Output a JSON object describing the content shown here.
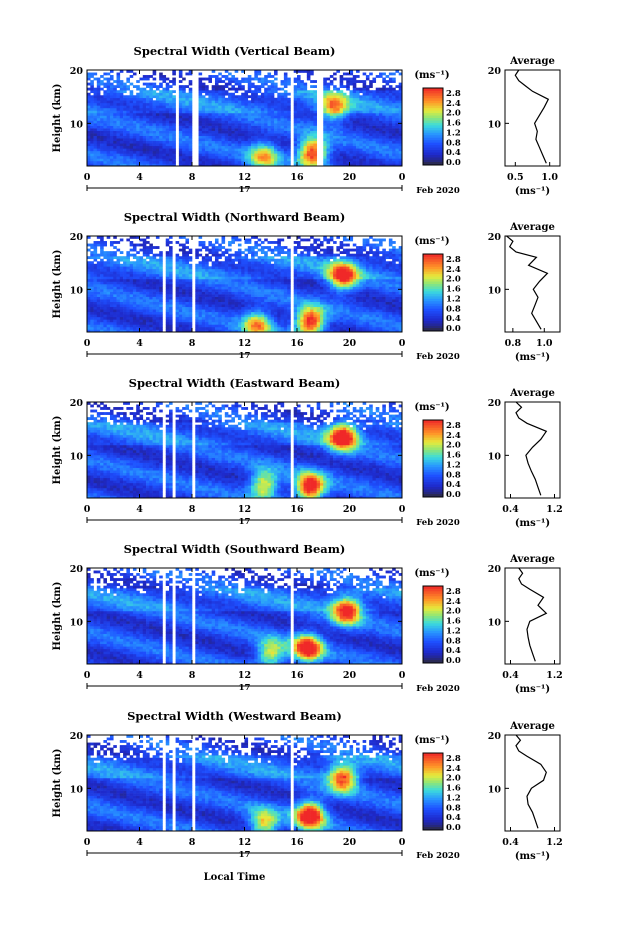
{
  "figure": {
    "x_axis_label": "Local Time",
    "date_day": "17",
    "date_month_year": "Feb 2020",
    "y_axis_label": "Height (km)",
    "colorbar_unit": "(ms⁻¹)",
    "profile_title": "Average",
    "profile_unit": "(ms⁻¹)"
  },
  "chart_data": [
    {
      "type": "heatmap",
      "title": "Spectral Width (Vertical Beam)",
      "xlabel": "Local Time",
      "ylabel": "Height (km)",
      "xlim": [
        0,
        24
      ],
      "ylim": [
        2,
        20
      ],
      "xticks": [
        "0",
        "4",
        "8",
        "12",
        "16",
        "20",
        "0"
      ],
      "yticks": [
        "10",
        "20"
      ],
      "colorbar": {
        "range": [
          0,
          3.0
        ],
        "ticks": [
          "2.8",
          "2.4",
          "2.0",
          "1.6",
          "1.2",
          "0.8",
          "0.4",
          "0.0"
        ]
      },
      "gaps_hours": [
        [
          6.8,
          7.0
        ],
        [
          8.0,
          8.4
        ],
        [
          15.4,
          15.8
        ],
        [
          17.6,
          17.9
        ]
      ],
      "hotspots": [
        {
          "t": 17.2,
          "h": 4.5,
          "v": 2.6
        },
        {
          "t": 18.8,
          "h": 13.0,
          "v": 1.8
        },
        {
          "t": 13.5,
          "h": 4.0,
          "v": 1.6
        }
      ],
      "profile": {
        "title": "Average",
        "xticks": [
          "0.5",
          "1.0"
        ],
        "xlim": [
          0.35,
          1.15
        ],
        "yticks": [
          "10",
          "20"
        ],
        "ylim": [
          2,
          20
        ],
        "heights": [
          2.5,
          4,
          5.5,
          7,
          8.5,
          10,
          11.5,
          13,
          14.5,
          16,
          17,
          18,
          19,
          20
        ],
        "values": [
          0.95,
          0.9,
          0.85,
          0.8,
          0.82,
          0.78,
          0.85,
          0.92,
          0.98,
          0.75,
          0.65,
          0.55,
          0.5,
          0.55
        ]
      }
    },
    {
      "type": "heatmap",
      "title": "Spectral Width (Northward Beam)",
      "xlabel": "Local Time",
      "ylabel": "Height (km)",
      "xlim": [
        0,
        24
      ],
      "ylim": [
        2,
        20
      ],
      "xticks": [
        "0",
        "4",
        "8",
        "12",
        "16",
        "20",
        "0"
      ],
      "yticks": [
        "10",
        "20"
      ],
      "colorbar": {
        "range": [
          0,
          3.0
        ],
        "ticks": [
          "2.8",
          "2.4",
          "2.0",
          "1.6",
          "1.2",
          "0.8",
          "0.4",
          "0.0"
        ]
      },
      "gaps_hours": [
        [
          5.8,
          6.0
        ],
        [
          6.6,
          6.8
        ],
        [
          8.0,
          8.3
        ],
        [
          15.4,
          15.7
        ]
      ],
      "hotspots": [
        {
          "t": 17.0,
          "h": 4.0,
          "v": 2.7
        },
        {
          "t": 19.5,
          "h": 12.5,
          "v": 2.4
        },
        {
          "t": 13.0,
          "h": 3.5,
          "v": 1.8
        }
      ],
      "profile": {
        "title": "Average",
        "xticks": [
          "0.8",
          "1.0"
        ],
        "xlim": [
          0.75,
          1.1
        ],
        "yticks": [
          "10",
          "20"
        ],
        "ylim": [
          2,
          20
        ],
        "heights": [
          2.5,
          4,
          5.5,
          7,
          8.5,
          10,
          11.5,
          13,
          14.5,
          16,
          17,
          18,
          19,
          20
        ],
        "values": [
          0.98,
          0.95,
          0.92,
          0.94,
          0.96,
          0.93,
          0.97,
          1.02,
          0.9,
          0.95,
          0.82,
          0.78,
          0.8,
          0.76
        ]
      }
    },
    {
      "type": "heatmap",
      "title": "Spectral Width (Eastward Beam)",
      "xlabel": "Local Time",
      "ylabel": "Height (km)",
      "xlim": [
        0,
        24
      ],
      "ylim": [
        2,
        20
      ],
      "xticks": [
        "0",
        "4",
        "8",
        "12",
        "16",
        "20",
        "0"
      ],
      "yticks": [
        "10",
        "20"
      ],
      "colorbar": {
        "range": [
          0,
          3.0
        ],
        "ticks": [
          "2.8",
          "2.4",
          "2.0",
          "1.6",
          "1.2",
          "0.8",
          "0.4",
          "0.0"
        ]
      },
      "gaps_hours": [
        [
          5.8,
          6.0
        ],
        [
          6.6,
          6.8
        ],
        [
          8.0,
          8.3
        ],
        [
          15.4,
          15.7
        ]
      ],
      "hotspots": [
        {
          "t": 17.0,
          "h": 4.0,
          "v": 2.8
        },
        {
          "t": 19.5,
          "h": 13.5,
          "v": 2.6
        },
        {
          "t": 13.5,
          "h": 4.5,
          "v": 1.8
        }
      ],
      "profile": {
        "title": "Average",
        "xticks": [
          "0.4",
          "1.2"
        ],
        "xlim": [
          0.3,
          1.3
        ],
        "yticks": [
          "10",
          "20"
        ],
        "ylim": [
          2,
          20
        ],
        "heights": [
          2.5,
          4,
          5.5,
          7,
          8.5,
          10,
          11.5,
          13,
          14.5,
          16,
          17,
          18,
          19,
          20
        ],
        "values": [
          0.95,
          0.9,
          0.85,
          0.78,
          0.72,
          0.68,
          0.8,
          0.95,
          1.05,
          0.7,
          0.55,
          0.5,
          0.6,
          0.5
        ]
      }
    },
    {
      "type": "heatmap",
      "title": "Spectral Width (Southward Beam)",
      "xlabel": "Local Time",
      "ylabel": "Height (km)",
      "xlim": [
        0,
        24
      ],
      "ylim": [
        2,
        20
      ],
      "xticks": [
        "0",
        "4",
        "8",
        "12",
        "16",
        "20",
        "0"
      ],
      "yticks": [
        "10",
        "20"
      ],
      "colorbar": {
        "range": [
          0,
          3.0
        ],
        "ticks": [
          "2.8",
          "2.4",
          "2.0",
          "1.6",
          "1.2",
          "0.8",
          "0.4",
          "0.0"
        ]
      },
      "gaps_hours": [
        [
          5.8,
          6.0
        ],
        [
          6.6,
          6.8
        ],
        [
          8.0,
          8.3
        ],
        [
          15.4,
          15.7
        ]
      ],
      "hotspots": [
        {
          "t": 16.8,
          "h": 5.0,
          "v": 2.7
        },
        {
          "t": 19.8,
          "h": 12.0,
          "v": 2.4
        },
        {
          "t": 14.0,
          "h": 4.0,
          "v": 1.6
        }
      ],
      "profile": {
        "title": "Average",
        "xticks": [
          "0.4",
          "1.2"
        ],
        "xlim": [
          0.3,
          1.3
        ],
        "yticks": [
          "10",
          "20"
        ],
        "ylim": [
          2,
          20
        ],
        "heights": [
          2.5,
          4,
          5.5,
          7,
          8.5,
          10,
          11.5,
          13,
          14.5,
          16,
          17,
          18,
          19,
          20
        ],
        "values": [
          0.85,
          0.8,
          0.75,
          0.72,
          0.7,
          0.75,
          1.05,
          0.9,
          1.0,
          0.75,
          0.6,
          0.55,
          0.62,
          0.55
        ]
      }
    },
    {
      "type": "heatmap",
      "title": "Spectral Width (Westward Beam)",
      "xlabel": "Local Time",
      "ylabel": "Height (km)",
      "xlim": [
        0,
        24
      ],
      "ylim": [
        2,
        20
      ],
      "xticks": [
        "0",
        "4",
        "8",
        "12",
        "16",
        "20",
        "0"
      ],
      "yticks": [
        "10",
        "20"
      ],
      "colorbar": {
        "range": [
          0,
          3.0
        ],
        "ticks": [
          "2.8",
          "2.4",
          "2.0",
          "1.6",
          "1.2",
          "0.8",
          "0.4",
          "0.0"
        ]
      },
      "gaps_hours": [
        [
          5.8,
          6.0
        ],
        [
          6.6,
          6.8
        ],
        [
          8.0,
          8.3
        ],
        [
          15.4,
          15.7
        ]
      ],
      "hotspots": [
        {
          "t": 17.0,
          "h": 5.0,
          "v": 2.9
        },
        {
          "t": 19.5,
          "h": 12.0,
          "v": 2.2
        },
        {
          "t": 13.5,
          "h": 3.5,
          "v": 1.7
        }
      ],
      "profile": {
        "title": "Average",
        "xticks": [
          "0.4",
          "1.2"
        ],
        "xlim": [
          0.3,
          1.3
        ],
        "yticks": [
          "10",
          "20"
        ],
        "ylim": [
          2,
          20
        ],
        "heights": [
          2.5,
          4,
          5.5,
          7,
          8.5,
          10,
          11.5,
          13,
          14.5,
          16,
          17,
          18,
          19,
          20
        ],
        "values": [
          0.9,
          0.85,
          0.8,
          0.72,
          0.7,
          0.78,
          1.0,
          1.05,
          0.95,
          0.7,
          0.55,
          0.5,
          0.58,
          0.5
        ]
      }
    }
  ]
}
